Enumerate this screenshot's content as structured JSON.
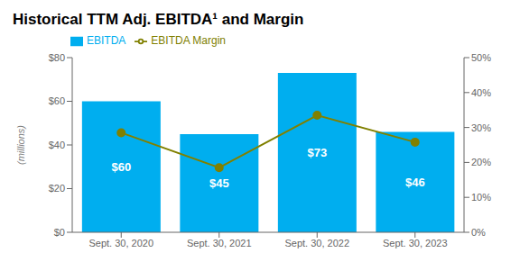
{
  "chart_data": {
    "type": "bar",
    "title": "Historical TTM Adj. EBITDA¹ and Margin",
    "categories": [
      "Sept. 30, 2020",
      "Sept. 30, 2021",
      "Sept. 30, 2022",
      "Sept. 30, 2023"
    ],
    "series": [
      {
        "name": "EBITDA",
        "type": "bar",
        "color": "#00AEEF",
        "values": [
          60,
          45,
          73,
          46
        ],
        "value_labels": [
          "$60",
          "$45",
          "$73",
          "$46"
        ]
      },
      {
        "name": "EBITDA Margin",
        "type": "line",
        "color": "#808000",
        "marker": "circle",
        "axis": "y2",
        "values": [
          0.285,
          0.185,
          0.335,
          0.258
        ]
      }
    ],
    "ylabel": "(millions)",
    "ylim": [
      0,
      80
    ],
    "yticks": [
      {
        "value": 0,
        "label": "$0"
      },
      {
        "value": 20,
        "label": "$20"
      },
      {
        "value": 40,
        "label": "$40"
      },
      {
        "value": 60,
        "label": "$60"
      },
      {
        "value": 80,
        "label": "$80"
      }
    ],
    "y2lim": [
      0,
      0.5
    ],
    "y2ticks": [
      {
        "value": 0,
        "label": "0%"
      },
      {
        "value": 0.1,
        "label": "10%"
      },
      {
        "value": 0.2,
        "label": "20%"
      },
      {
        "value": 0.3,
        "label": "30%"
      },
      {
        "value": 0.4,
        "label": "40%"
      },
      {
        "value": 0.5,
        "label": "50%"
      }
    ],
    "data_labels": true,
    "grid": false,
    "legend": "top"
  }
}
